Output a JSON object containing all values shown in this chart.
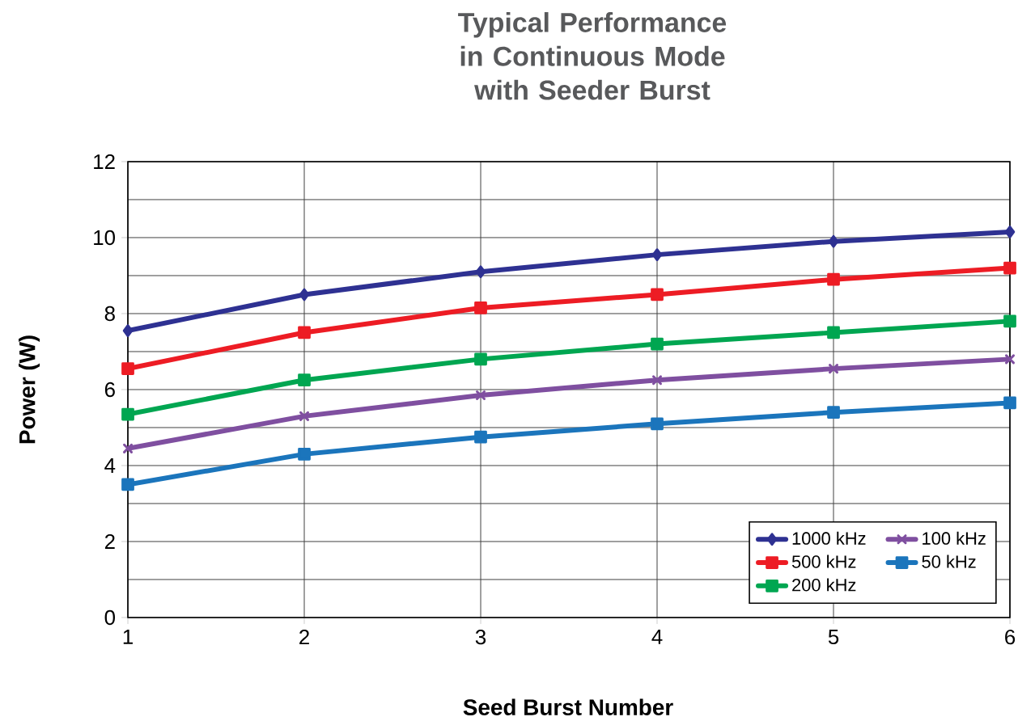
{
  "chart_data": {
    "type": "line",
    "title": "Typical Performance in Continuous Mode with Seeder Burst",
    "xlabel": "Seed Burst Number",
    "ylabel": "Power (W)",
    "x": [
      1,
      2,
      3,
      4,
      5,
      6
    ],
    "xlim": [
      1,
      6
    ],
    "xticks": [
      1,
      2,
      3,
      4,
      5,
      6
    ],
    "ylim": [
      0,
      12
    ],
    "yticks": [
      0,
      2,
      4,
      6,
      8,
      10,
      12
    ],
    "grid": true,
    "legend": "bottom right",
    "line_style": "solid",
    "series": [
      {
        "name": "1000 kHz",
        "color": "#2e3192",
        "marker": "diamond",
        "values": [
          7.55,
          8.5,
          9.1,
          9.55,
          9.9,
          10.15
        ]
      },
      {
        "name": "500 kHz",
        "color": "#ed1c24",
        "marker": "square",
        "values": [
          6.55,
          7.5,
          8.15,
          8.5,
          8.9,
          9.2
        ]
      },
      {
        "name": "200 kHz",
        "color": "#00a651",
        "marker": "square",
        "values": [
          5.35,
          6.25,
          6.8,
          7.2,
          7.5,
          7.8
        ]
      },
      {
        "name": "100 kHz",
        "color": "#7f4fa0",
        "marker": "cross",
        "values": [
          4.45,
          5.3,
          5.85,
          6.25,
          6.55,
          6.8
        ]
      },
      {
        "name": "50 kHz",
        "color": "#1b75bc",
        "marker": "square",
        "values": [
          3.5,
          4.3,
          4.75,
          5.1,
          5.4,
          5.65
        ]
      }
    ]
  }
}
